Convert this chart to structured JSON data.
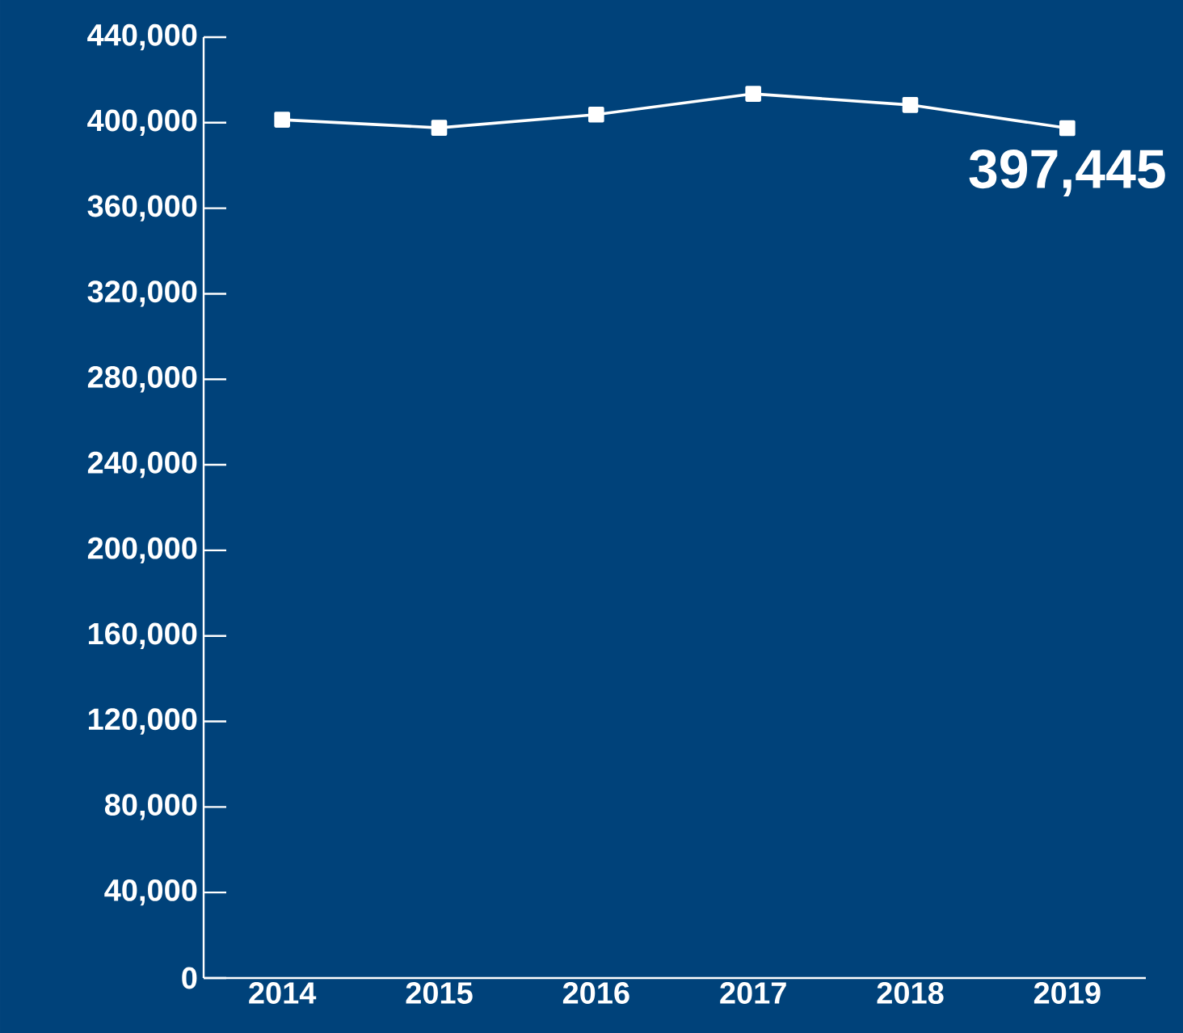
{
  "chart_data": {
    "type": "line",
    "categories": [
      "2014",
      "2015",
      "2016",
      "2017",
      "2018",
      "2019"
    ],
    "series": [
      {
        "color": "#ffffff",
        "values": [
          401400,
          397600,
          403800,
          413500,
          408300,
          397445
        ],
        "value_labels": [
          null,
          null,
          null,
          null,
          null,
          "397,445"
        ]
      }
    ],
    "ylim": [
      0,
      440000
    ],
    "yticks": [
      {
        "value": 0,
        "label": "0"
      },
      {
        "value": 40000,
        "label": "40,000"
      },
      {
        "value": 80000,
        "label": "80,000"
      },
      {
        "value": 120000,
        "label": "120,000"
      },
      {
        "value": 160000,
        "label": "160,000"
      },
      {
        "value": 200000,
        "label": "200,000"
      },
      {
        "value": 240000,
        "label": "240,000"
      },
      {
        "value": 280000,
        "label": "280,000"
      },
      {
        "value": 320000,
        "label": "320,000"
      },
      {
        "value": 360000,
        "label": "360,000"
      },
      {
        "value": 400000,
        "label": "400,000"
      },
      {
        "value": 440000,
        "label": "440,000"
      }
    ],
    "grid": false,
    "marker": "square",
    "line_style": "solid"
  }
}
